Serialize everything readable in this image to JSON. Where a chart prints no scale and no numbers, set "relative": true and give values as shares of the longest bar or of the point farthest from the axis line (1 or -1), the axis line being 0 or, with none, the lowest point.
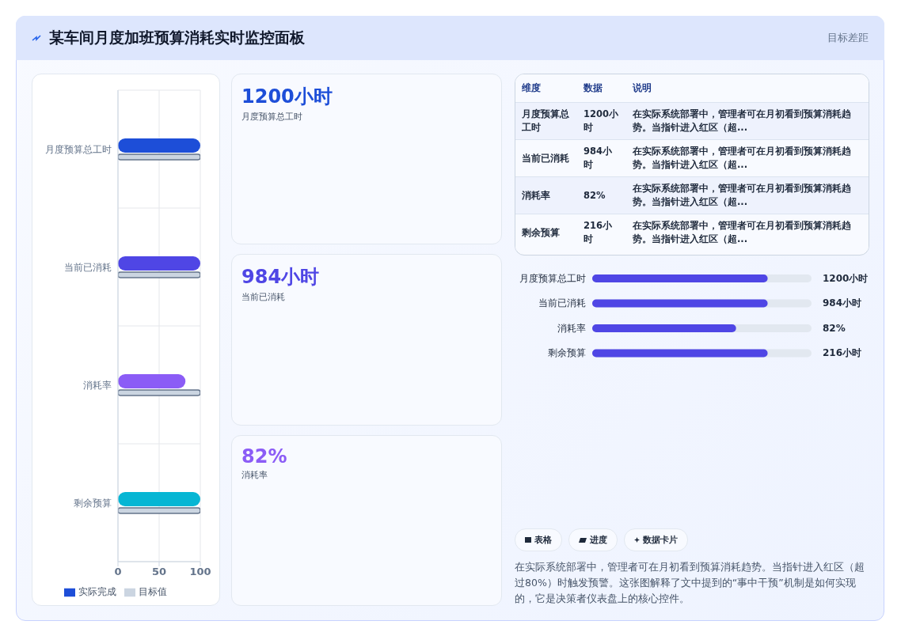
{
  "chart_data": [
    {
      "type": "other",
      "title": "某车间月度加班预算消耗实时监控面板",
      "annotations": [
        "目标差距"
      ]
    },
    {
      "type": "bar",
      "orientation": "horizontal",
      "categories": [
        "月度预算总工时",
        "当前已消耗",
        "消耗率",
        "剩余预算"
      ],
      "series": [
        {
          "name": "实际完成",
          "color": "#1d4ed8",
          "colors": [
            "#1d4ed8",
            "#4f46e5",
            "#8b5cf6",
            "#06b6d4"
          ],
          "values": [
            100,
            100,
            82,
            100
          ]
        },
        {
          "name": "目标值",
          "color": "#cbd5e1",
          "values": [
            100,
            100,
            100,
            100
          ]
        }
      ],
      "xlim": [
        0,
        100
      ],
      "xticks": [
        0,
        50,
        100
      ],
      "grid": true,
      "legend": "bottom"
    },
    {
      "type": "other",
      "title": "1200小时",
      "subtitle": "月度预算总工时"
    },
    {
      "type": "other",
      "title": "984小时",
      "subtitle": "当前已消耗"
    },
    {
      "type": "other",
      "title": "82%",
      "subtitle": "消耗率"
    },
    {
      "type": "other",
      "annotations": [
        "维度",
        "数据",
        "说明",
        "月度预算总工时",
        "1200小时",
        "在实际系统部署中，管理者可在月初看到预算消耗趋势。当指针进入红区（超...",
        "当前已消耗",
        "984小时",
        "在实际系统部署中，管理者可在月初看到预算消耗趋势。当指针进入红区（超...",
        "消耗率",
        "82%",
        "在实际系统部署中，管理者可在月初看到预算消耗趋势。当指针进入红区（超...",
        "剩余预算",
        "216小时",
        "在实际系统部署中，管理者可在月初看到预算消耗趋势。当指针进入红区（超..."
      ]
    },
    {
      "type": "bar",
      "orientation": "horizontal",
      "relative": true,
      "categories": [
        "月度预算总工时",
        "当前已消耗",
        "消耗率",
        "剩余预算"
      ],
      "series": [
        {
          "color": "#4f46e5",
          "values": [
            1,
            1,
            0.82,
            1
          ]
        }
      ],
      "annotations": [
        "1200小时",
        "984小时",
        "82%",
        "216小时"
      ]
    },
    {
      "type": "other",
      "annotations": [
        "表格",
        "进度",
        "数据卡片",
        "在实际系统部署中，管理者可在月初看到预算消耗趋势。当指针进入红区（超过80%）时触发预警。这张图解释了文中提到的“事中干预”机制是如何实现的，它是决策者仪表盘上的核心控件。"
      ]
    }
  ]
}
